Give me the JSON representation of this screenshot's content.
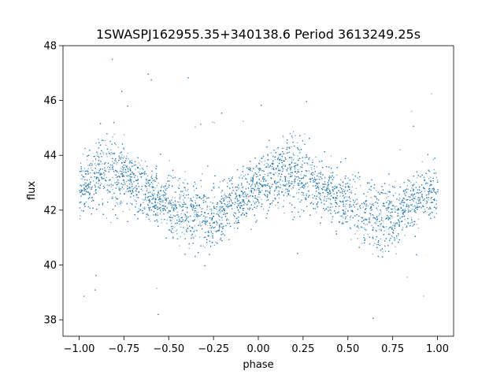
{
  "chart_data": {
    "type": "scatter",
    "title": "1SWASPJ162955.35+340138.6 Period 3613249.25s",
    "xlabel": "phase",
    "ylabel": "flux",
    "xlim": [
      -1.09,
      1.09
    ],
    "ylim": [
      37.4,
      48.0
    ],
    "xticks": [
      -1.0,
      -0.75,
      -0.5,
      -0.25,
      0.0,
      0.25,
      0.5,
      0.75,
      1.0
    ],
    "xtick_labels": [
      "−1.00",
      "−0.75",
      "−0.50",
      "−0.25",
      "0.00",
      "0.25",
      "0.50",
      "0.75",
      "1.00"
    ],
    "yticks": [
      38,
      40,
      42,
      44,
      46,
      48
    ],
    "ytick_labels": [
      "38",
      "40",
      "42",
      "44",
      "46",
      "48"
    ],
    "grid": false,
    "legend": "none",
    "marker_color": "#1f77b4",
    "series": [
      {
        "description_points": "phase-folded light curve, repeated over two cycles",
        "x": [
          -1.0,
          -0.95,
          -0.9,
          -0.85,
          -0.8,
          -0.75,
          -0.7,
          -0.65,
          -0.6,
          -0.55,
          -0.5,
          -0.45,
          -0.4,
          -0.35,
          -0.3,
          -0.25,
          -0.2,
          -0.15,
          -0.1,
          -0.05,
          0.0,
          0.05,
          0.1,
          0.15,
          0.2,
          0.25,
          0.3,
          0.35,
          0.4,
          0.45,
          0.5,
          0.55,
          0.6,
          0.65,
          0.7,
          0.75,
          0.8,
          0.85,
          0.9,
          0.95,
          1.0
        ],
        "y": [
          42.8,
          43.0,
          43.3,
          43.5,
          43.4,
          43.2,
          43.0,
          42.8,
          42.6,
          42.4,
          42.2,
          42.0,
          41.9,
          41.8,
          41.7,
          41.8,
          42.0,
          42.3,
          42.5,
          42.7,
          42.8,
          43.0,
          43.3,
          43.5,
          43.4,
          43.2,
          43.0,
          42.8,
          42.6,
          42.4,
          42.2,
          42.0,
          41.9,
          41.8,
          41.7,
          41.8,
          42.0,
          42.3,
          42.5,
          42.7,
          42.8
        ],
        "spread": [
          1.0,
          1.1,
          1.2,
          1.3,
          1.3,
          1.2,
          1.1,
          1.0,
          1.0,
          1.0,
          1.1,
          1.2,
          1.2,
          1.3,
          1.3,
          1.2,
          1.1,
          1.0,
          1.0,
          1.0,
          1.0,
          1.1,
          1.2,
          1.3,
          1.3,
          1.2,
          1.1,
          1.0,
          1.0,
          1.0,
          1.1,
          1.2,
          1.2,
          1.3,
          1.3,
          1.2,
          1.1,
          1.0,
          1.0,
          1.0,
          1.0
        ]
      }
    ]
  }
}
